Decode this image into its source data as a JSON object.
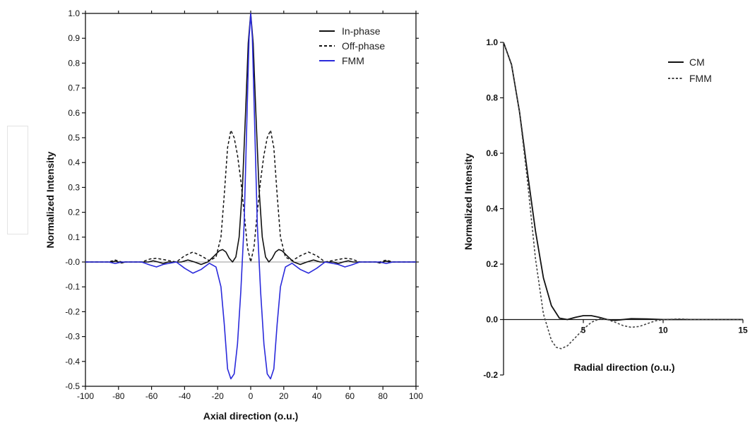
{
  "chart_data": [
    {
      "type": "line",
      "xlabel": "Axial direction (o.u.)",
      "ylabel": "Normalized Intensity",
      "xlim": [
        -100,
        100
      ],
      "ylim": [
        -0.5,
        1.0
      ],
      "xticks": [
        -100,
        -80,
        -60,
        -40,
        -20,
        0,
        20,
        40,
        60,
        80,
        100
      ],
      "yticks": [
        -0.5,
        -0.4,
        -0.3,
        -0.2,
        -0.1,
        0.0,
        0.1,
        0.2,
        0.3,
        0.4,
        0.5,
        0.6,
        0.7,
        0.8,
        0.9,
        1.0
      ],
      "ytick_labels": [
        "-0.5",
        "-0.4",
        "-0.3",
        "-0.2",
        "-0.1",
        "-0.0",
        "0.1",
        "0.2",
        "0.3",
        "0.4",
        "0.5",
        "0.6",
        "0.7",
        "0.8",
        "0.9",
        "1.0"
      ],
      "legend_position": "top-right",
      "series": [
        {
          "name": "In-phase",
          "style": "solid",
          "color": "#111111",
          "x": [
            -100,
            -84,
            -82,
            -80,
            -78,
            -76,
            -62,
            -59,
            -56,
            -53,
            -50,
            -42,
            -38,
            -34,
            -30,
            -26,
            -22,
            -19,
            -17,
            -15,
            -13,
            -11,
            -9,
            -7,
            -5,
            -3,
            -1.5,
            0,
            1.5,
            3,
            5,
            7,
            9,
            11,
            13,
            15,
            17,
            19,
            22,
            26,
            30,
            34,
            38,
            42,
            50,
            53,
            56,
            59,
            62,
            76,
            78,
            80,
            82,
            84,
            100
          ],
          "y": [
            0,
            0,
            0.004,
            0,
            -0.004,
            0,
            0,
            0.005,
            0,
            -0.006,
            0,
            0,
            0.008,
            0,
            -0.01,
            0,
            0.025,
            0.045,
            0.05,
            0.04,
            0.015,
            0,
            0.02,
            0.1,
            0.3,
            0.62,
            0.88,
            1.0,
            0.88,
            0.62,
            0.3,
            0.1,
            0.02,
            0,
            0.015,
            0.04,
            0.05,
            0.045,
            0.025,
            0,
            -0.01,
            0,
            0.008,
            0,
            0,
            -0.006,
            0,
            0.005,
            0,
            0,
            -0.004,
            0,
            0.004,
            0,
            0
          ]
        },
        {
          "name": "Off-phase",
          "style": "dashed",
          "color": "#111111",
          "x": [
            -100,
            -86,
            -82,
            -78,
            -66,
            -61,
            -57,
            -53,
            -45,
            -40,
            -35,
            -30,
            -25,
            -21,
            -18,
            -16,
            -14,
            -12,
            -10,
            -8,
            -6,
            -4,
            -2,
            0,
            2,
            4,
            6,
            8,
            10,
            12,
            14,
            16,
            18,
            21,
            25,
            30,
            35,
            40,
            45,
            53,
            57,
            61,
            66,
            78,
            82,
            86,
            100
          ],
          "y": [
            0,
            0,
            0.008,
            0,
            0,
            0.012,
            0.015,
            0.01,
            0,
            0.025,
            0.04,
            0.025,
            0.005,
            0.02,
            0.1,
            0.27,
            0.46,
            0.53,
            0.5,
            0.43,
            0.33,
            0.2,
            0.06,
            0,
            0.06,
            0.2,
            0.33,
            0.43,
            0.5,
            0.53,
            0.46,
            0.27,
            0.1,
            0.02,
            0.005,
            0.025,
            0.04,
            0.025,
            0,
            0.01,
            0.015,
            0.012,
            0,
            0,
            0.008,
            0,
            0
          ]
        },
        {
          "name": "FMM",
          "style": "solid",
          "color": "#2a2adb",
          "x": [
            -100,
            -86,
            -82,
            -78,
            -66,
            -61,
            -57,
            -53,
            -45,
            -40,
            -35,
            -30,
            -25,
            -21,
            -18,
            -16,
            -14,
            -12,
            -10,
            -8,
            -6,
            -4,
            -2,
            -1,
            0,
            1,
            2,
            4,
            6,
            8,
            10,
            12,
            14,
            16,
            18,
            21,
            25,
            30,
            35,
            40,
            45,
            53,
            57,
            61,
            66,
            78,
            82,
            86,
            100
          ],
          "y": [
            0,
            0,
            -0.006,
            0,
            0,
            -0.012,
            -0.02,
            -0.01,
            0,
            -0.025,
            -0.045,
            -0.03,
            -0.005,
            -0.02,
            -0.1,
            -0.25,
            -0.43,
            -0.47,
            -0.45,
            -0.33,
            -0.12,
            0.15,
            0.65,
            0.9,
            1.0,
            0.9,
            0.65,
            0.15,
            -0.12,
            -0.33,
            -0.45,
            -0.47,
            -0.43,
            -0.25,
            -0.1,
            -0.02,
            -0.005,
            -0.03,
            -0.045,
            -0.025,
            0,
            -0.01,
            -0.02,
            -0.012,
            0,
            0,
            -0.006,
            0,
            0
          ]
        }
      ]
    },
    {
      "type": "line",
      "xlabel": "Radial direction (o.u.)",
      "ylabel": "Normalized Intensity",
      "xlim": [
        0,
        15
      ],
      "ylim": [
        -0.2,
        1.0
      ],
      "xticks": [
        5,
        10,
        15
      ],
      "xtick_labels": [
        "5",
        "10",
        "15"
      ],
      "yticks": [
        -0.2,
        0.0,
        0.2,
        0.4,
        0.6,
        0.8,
        1.0
      ],
      "ytick_labels": [
        "-0.2",
        "0.0",
        "0.2",
        "0.4",
        "0.6",
        "0.8",
        "1.0"
      ],
      "legend_position": "top-right",
      "series": [
        {
          "name": "CM",
          "style": "solid",
          "color": "#111111",
          "x": [
            0,
            0.5,
            1,
            1.5,
            2,
            2.5,
            3,
            3.5,
            4,
            4.5,
            5,
            5.5,
            6,
            6.5,
            7,
            8,
            9,
            10,
            11,
            12,
            13,
            14,
            15
          ],
          "y": [
            1.0,
            0.92,
            0.75,
            0.53,
            0.32,
            0.15,
            0.05,
            0.005,
            0.0,
            0.008,
            0.014,
            0.014,
            0.008,
            0.0,
            -0.003,
            0.003,
            0.002,
            0.0,
            0.0,
            0.0,
            0.0,
            0.0,
            0.0
          ]
        },
        {
          "name": "FMM",
          "style": "dotted",
          "color": "#444444",
          "x": [
            0,
            0.5,
            1,
            1.5,
            2,
            2.5,
            3,
            3.3,
            3.6,
            4,
            4.5,
            5,
            5.5,
            6,
            6.5,
            7,
            7.5,
            8,
            8.5,
            9,
            9.5,
            10,
            11,
            12,
            13,
            14,
            15
          ],
          "y": [
            1.0,
            0.92,
            0.75,
            0.5,
            0.22,
            0.02,
            -0.075,
            -0.1,
            -0.105,
            -0.095,
            -0.065,
            -0.035,
            -0.01,
            0.002,
            0.0,
            -0.01,
            -0.022,
            -0.028,
            -0.025,
            -0.015,
            -0.005,
            0.0,
            0.002,
            0.0,
            0.0,
            0.0,
            0.0
          ]
        }
      ]
    }
  ]
}
